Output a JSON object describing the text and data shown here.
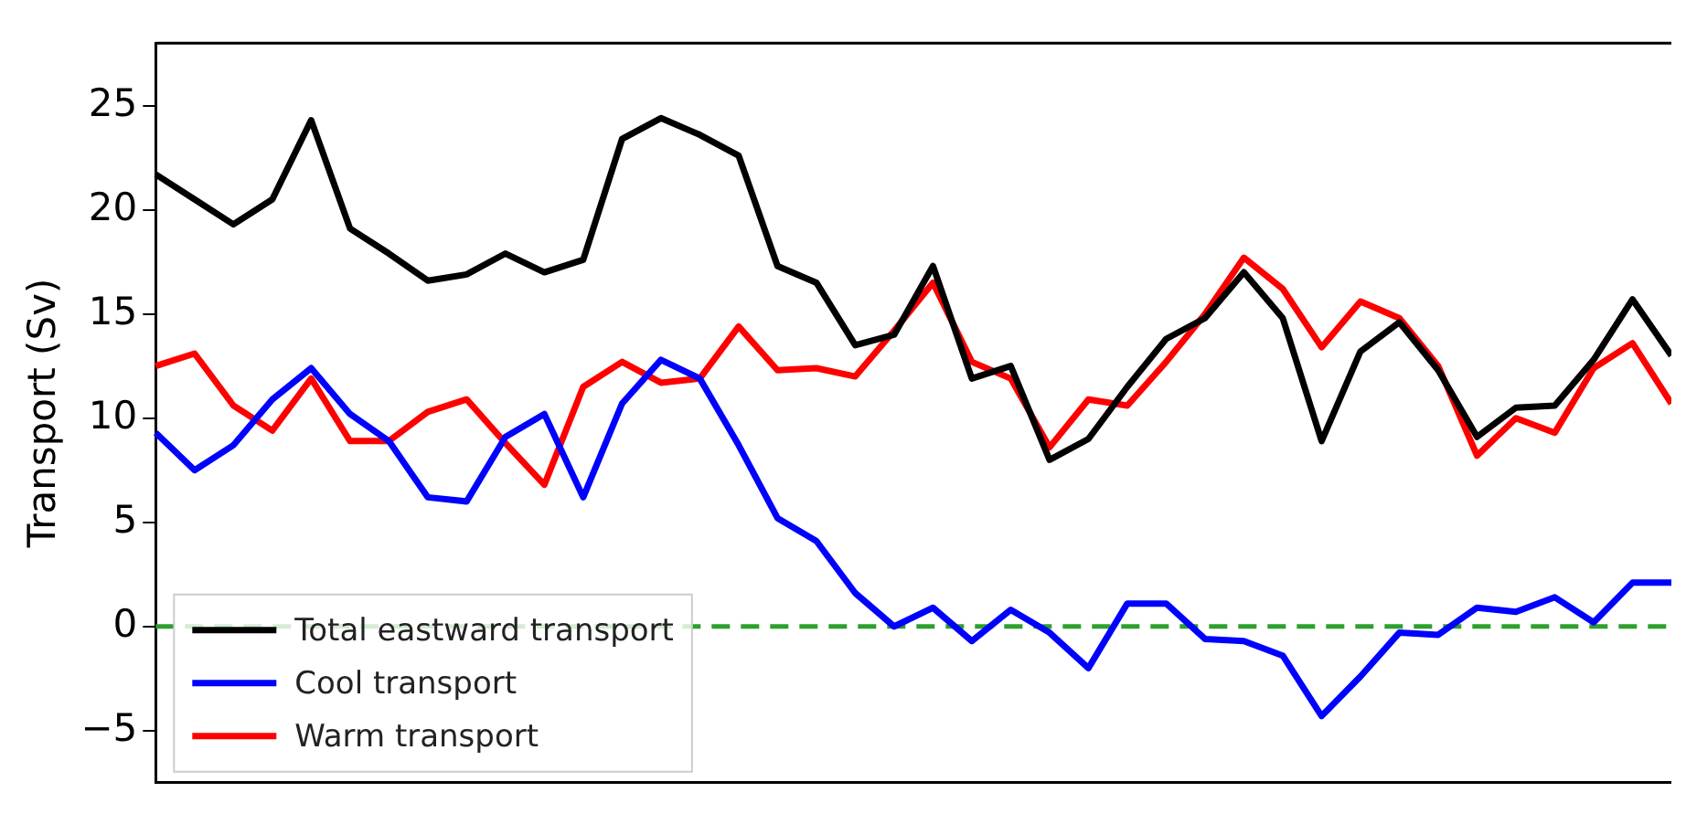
{
  "chart_data": {
    "type": "line",
    "ylabel": "Transport (Sv)",
    "categories": [
      null,
      null,
      null,
      null,
      null,
      null,
      null,
      null,
      null,
      null,
      null,
      null,
      null,
      null,
      null,
      null,
      null,
      null,
      null,
      null,
      null,
      null,
      null,
      null,
      null,
      null,
      null,
      null,
      null,
      null,
      null,
      null,
      null,
      null,
      null,
      null,
      null,
      null,
      null,
      null
    ],
    "series": [
      {
        "name": "Total eastward transport",
        "color": "#000000",
        "values": [
          21.7,
          20.5,
          19.3,
          20.5,
          24.3,
          19.1,
          17.9,
          16.6,
          16.9,
          17.9,
          17.0,
          17.6,
          23.4,
          24.4,
          23.6,
          22.6,
          17.3,
          16.5,
          13.5,
          14.0,
          17.3,
          11.9,
          12.5,
          8.0,
          9.0,
          11.5,
          13.8,
          14.8,
          17.0,
          14.8,
          8.9,
          13.2,
          14.6,
          12.3,
          9.1,
          10.5,
          10.6,
          12.8,
          15.7,
          13.0
        ]
      },
      {
        "name": "Cool transport",
        "color": "#0000ff",
        "values": [
          9.3,
          7.5,
          8.7,
          10.9,
          12.4,
          10.2,
          8.9,
          6.2,
          6.0,
          9.1,
          10.2,
          6.2,
          10.7,
          12.8,
          11.9,
          8.7,
          5.2,
          4.1,
          1.6,
          0.0,
          0.9,
          -0.7,
          0.8,
          -0.3,
          -2.0,
          1.1,
          1.1,
          -0.6,
          -0.7,
          -1.4,
          -4.3,
          -2.4,
          -0.3,
          -0.4,
          0.9,
          0.7,
          1.4,
          0.2,
          2.1,
          2.1
        ]
      },
      {
        "name": "Warm transport",
        "color": "#ff0000",
        "values": [
          12.5,
          13.1,
          10.6,
          9.4,
          11.9,
          8.9,
          8.9,
          10.3,
          10.9,
          8.8,
          6.8,
          11.5,
          12.7,
          11.7,
          11.9,
          14.4,
          12.3,
          12.4,
          12.0,
          14.2,
          16.5,
          12.7,
          11.9,
          8.6,
          10.9,
          10.6,
          12.7,
          15.0,
          17.7,
          16.2,
          13.4,
          15.6,
          14.8,
          12.5,
          8.2,
          10.0,
          9.3,
          12.4,
          13.6,
          10.7
        ]
      }
    ],
    "ref_lines": [
      {
        "axis": "y",
        "value": 0,
        "color": "#2ca02c",
        "line_style": "dashed"
      }
    ],
    "ylim": [
      -7.5,
      28
    ],
    "yticks": [
      {
        "value": -5,
        "label": "−5"
      },
      0,
      5,
      10,
      15,
      20,
      25
    ],
    "grid": false,
    "legend": "bottom left",
    "tick_labels": "y"
  }
}
